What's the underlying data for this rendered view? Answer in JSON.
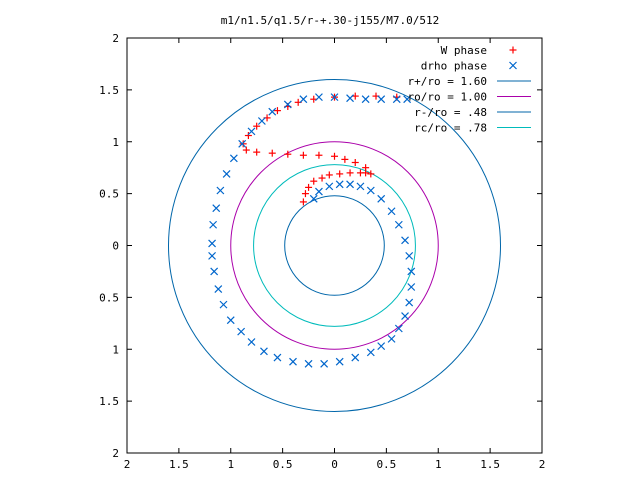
{
  "chart_data": {
    "type": "scatter",
    "title": "m1/n1.5/q1.5/r-+.30-j155/M7.0/512",
    "xlabel": "",
    "ylabel": "",
    "xlim": [
      -2,
      2
    ],
    "ylim": [
      -2,
      2
    ],
    "x_ticks": [
      -2,
      -1.5,
      -1,
      -0.5,
      0,
      0.5,
      1,
      1.5,
      2
    ],
    "y_ticks": [
      -2,
      -1.5,
      -1,
      -0.5,
      0,
      0.5,
      1,
      1.5,
      2
    ],
    "x_tick_labels": [
      "2",
      "1.5",
      "1",
      "0.5",
      "0",
      "0.5",
      "1",
      "1.5",
      "2"
    ],
    "y_tick_labels": [
      "2",
      "1.5",
      "1",
      "0.5",
      "0",
      "0.5",
      "1",
      "1.5",
      "2"
    ],
    "grid": false,
    "legend_position": "top-right",
    "series": [
      {
        "name": "W phase",
        "kind": "points",
        "marker": "+",
        "color": "#ff0000",
        "x": [
          -0.3,
          -0.28,
          -0.25,
          -0.2,
          -0.12,
          -0.05,
          0.05,
          0.15,
          0.25,
          0.3,
          0.35,
          0.3,
          0.2,
          0.1,
          0.0,
          -0.15,
          -0.3,
          -0.45,
          -0.6,
          -0.75,
          -0.85,
          -0.88,
          -0.83,
          -0.75,
          -0.65,
          -0.55,
          -0.45,
          -0.35,
          -0.2,
          0.0,
          0.2,
          0.4,
          0.6
        ],
        "y": [
          0.42,
          0.5,
          0.56,
          0.62,
          0.65,
          0.68,
          0.69,
          0.7,
          0.7,
          0.7,
          0.69,
          0.75,
          0.8,
          0.83,
          0.86,
          0.87,
          0.87,
          0.88,
          0.89,
          0.9,
          0.92,
          0.98,
          1.06,
          1.15,
          1.23,
          1.3,
          1.34,
          1.38,
          1.41,
          1.43,
          1.44,
          1.44,
          1.43
        ]
      },
      {
        "name": "drho phase",
        "kind": "points",
        "marker": "x",
        "color": "#0066cc",
        "x": [
          -0.2,
          -0.15,
          -0.05,
          0.05,
          0.15,
          0.25,
          0.35,
          0.45,
          0.55,
          0.62,
          0.68,
          0.72,
          0.74,
          0.74,
          0.72,
          0.68,
          0.62,
          0.55,
          0.45,
          0.35,
          0.2,
          0.05,
          -0.1,
          -0.25,
          -0.4,
          -0.55,
          -0.68,
          -0.8,
          -0.9,
          -1.0,
          -1.07,
          -1.12,
          -1.16,
          -1.18,
          -1.18,
          -1.17,
          -1.14,
          -1.1,
          -1.04,
          -0.97,
          -0.89,
          -0.8,
          -0.7,
          -0.6,
          -0.45,
          -0.3,
          -0.15,
          0.0,
          0.15,
          0.3,
          0.45,
          0.6,
          0.7
        ],
        "y": [
          0.45,
          0.52,
          0.57,
          0.59,
          0.59,
          0.57,
          0.53,
          0.45,
          0.33,
          0.2,
          0.05,
          -0.1,
          -0.25,
          -0.4,
          -0.55,
          -0.68,
          -0.8,
          -0.9,
          -0.97,
          -1.03,
          -1.08,
          -1.12,
          -1.14,
          -1.14,
          -1.12,
          -1.08,
          -1.02,
          -0.93,
          -0.83,
          -0.72,
          -0.57,
          -0.42,
          -0.25,
          -0.1,
          0.02,
          0.2,
          0.36,
          0.53,
          0.69,
          0.84,
          0.98,
          1.1,
          1.2,
          1.29,
          1.36,
          1.41,
          1.43,
          1.43,
          1.42,
          1.41,
          1.41,
          1.41,
          1.41
        ]
      },
      {
        "name": "r+/ro = 1.60",
        "kind": "circle",
        "radius": 1.6,
        "color": "#0066aa"
      },
      {
        "name": "ro/ro = 1.00",
        "kind": "circle",
        "radius": 1.0,
        "color": "#aa00aa"
      },
      {
        "name": "r-/ro = .48",
        "kind": "circle",
        "radius": 0.48,
        "color": "#0066aa"
      },
      {
        "name": "rc/ro = .78",
        "kind": "circle",
        "radius": 0.78,
        "color": "#00bbbb"
      }
    ]
  }
}
